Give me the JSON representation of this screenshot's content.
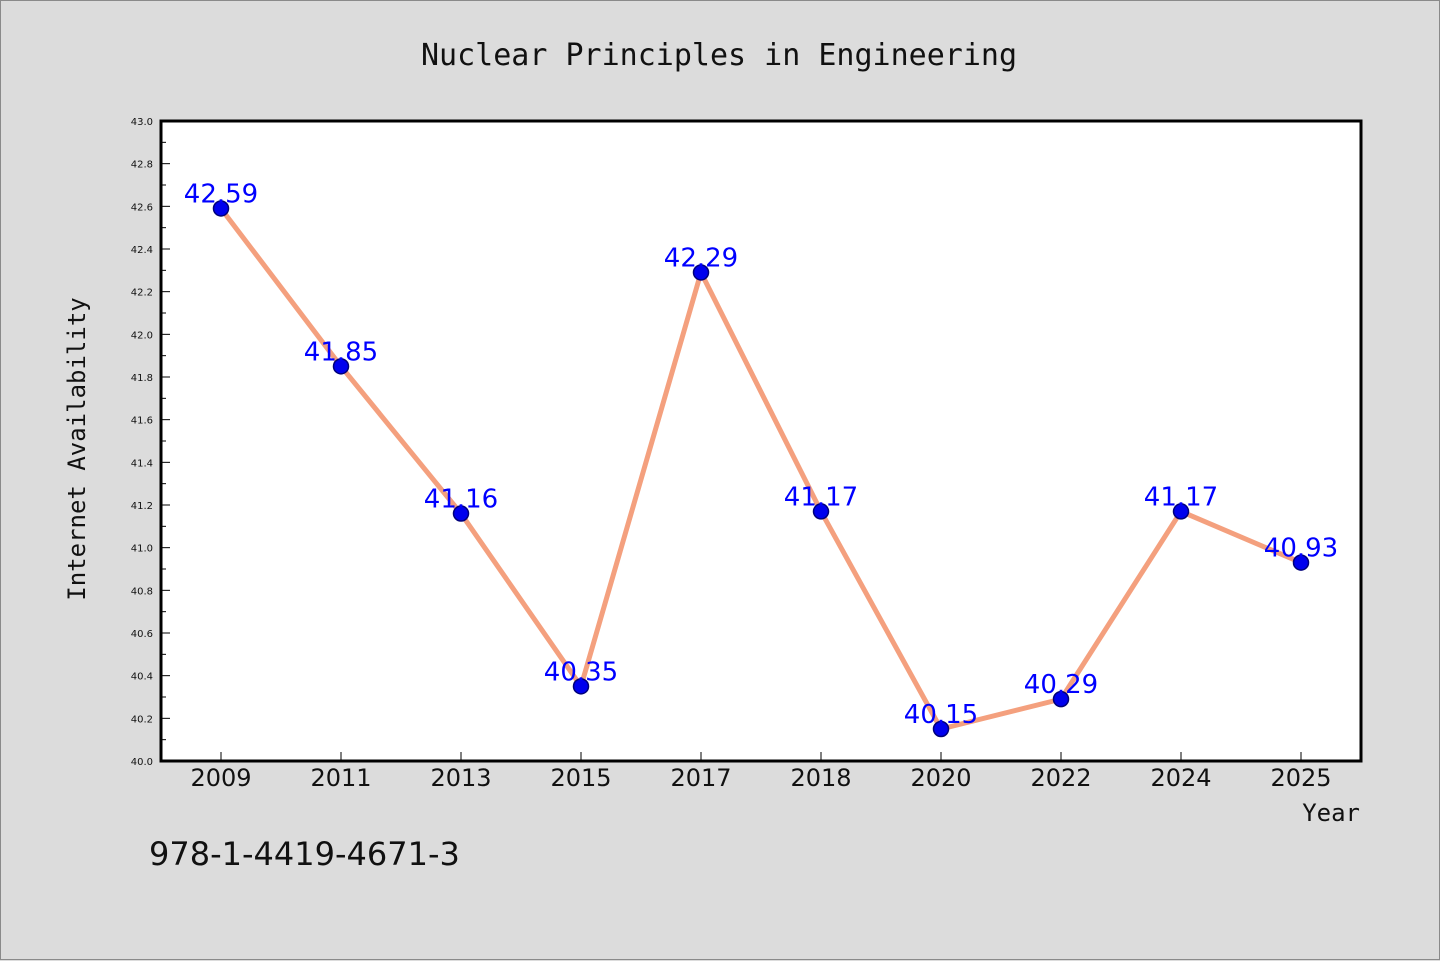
{
  "footer": {
    "code": "978-1-4419-4671-3"
  },
  "colors": {
    "background": "#dcdcdc",
    "plot_area": "#ffffff",
    "axis": "#000000",
    "line": "#f4a07e",
    "marker_fill": "#0000ee",
    "marker_edge": "#00007a",
    "data_label": "#0000ff"
  },
  "chart_data": {
    "type": "line",
    "title": "Nuclear Principles in Engineering",
    "xlabel": "Year",
    "ylabel": "Internet Availability",
    "categories": [
      "2009",
      "2011",
      "2013",
      "2015",
      "2017",
      "2018",
      "2020",
      "2022",
      "2024",
      "2025"
    ],
    "series": [
      {
        "values": [
          42.59,
          41.85,
          41.16,
          40.35,
          42.29,
          41.17,
          40.15,
          40.29,
          41.17,
          40.93
        ],
        "data_labels": [
          "42.59",
          "41.85",
          "41.16",
          "40.35",
          "42.29",
          "41.17",
          "40.15",
          "40.29",
          "41.17",
          "40.93"
        ]
      }
    ],
    "ylim": [
      40.0,
      43.0
    ],
    "yticks": [
      "40.0",
      "40.2",
      "40.4",
      "40.6",
      "40.8",
      "41.0",
      "41.2",
      "41.4",
      "41.6",
      "41.8",
      "42.0",
      "42.2",
      "42.4",
      "42.6",
      "42.8",
      "43.0"
    ],
    "grid": false,
    "markers": true
  }
}
